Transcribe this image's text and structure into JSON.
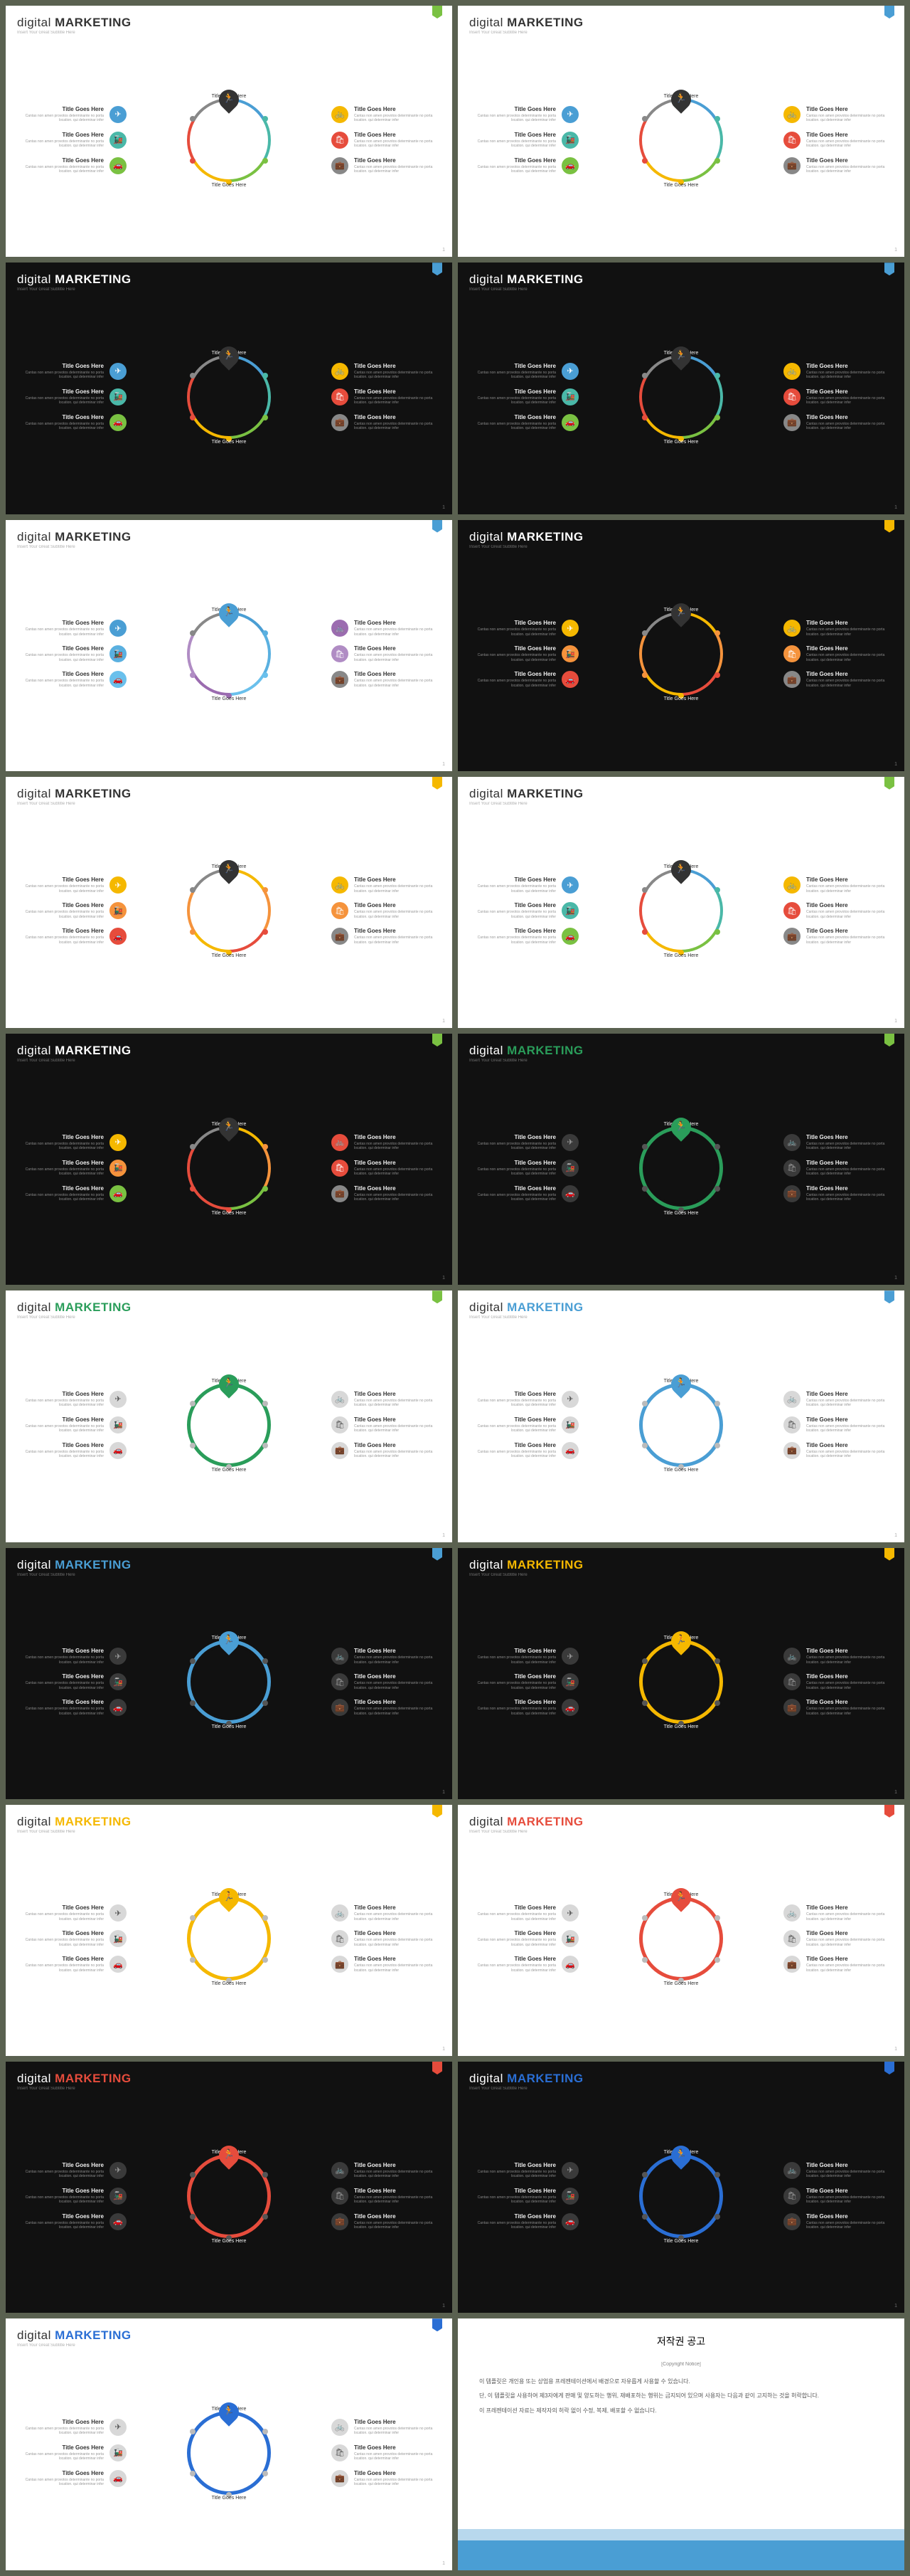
{
  "title_a": "digital",
  "title_b": "MARKETING",
  "subtitle": "Insert Your Great Subtitle Here",
  "item_title": "Title Goes Here",
  "item_body": "Cantas non amen provotos determinante no porta location. qui determinar infer",
  "globe_top": "Title Goes Here",
  "globe_bottom": "Title Goes Here",
  "copyright_title": "저작권 공고",
  "copyright_sub": "[Copyright Notice]",
  "cp1": "이 템플릿은 개인용 또는 상업용 프레젠테이션에서 배경으로 자유롭게 사용할 수 있습니다.",
  "cp2": "단, 이 템플릿을 사용하여 제3자에게 판매 및 양도하는 행위, 재배포하는 행위는 금지되어 있으며 사용자는 다음과 같이 고지하는 것을 허락합니다.",
  "cp3": "이 프레젠테이션 자료는 제작자의 허락 없이 수정, 복제, 배포할 수 없습니다.",
  "colors": {
    "blue": "#4a9ed4",
    "green": "#7ac142",
    "yellow": "#f5b800",
    "orange": "#f5933c",
    "red": "#e64c3c",
    "gray": "#888888",
    "purple": "#9b6cb0",
    "teal": "#4ab8a8",
    "dgreen": "#2a9d5a",
    "dblue": "#2a6ed4",
    "brown": "#a67c52"
  },
  "icons": [
    "✈",
    "🚂",
    "🚗",
    "🚲",
    "🛍",
    "💼"
  ],
  "slides": [
    {
      "bg": "light",
      "tag": "#7ac142",
      "num": "1",
      "mode": "multi",
      "pin": "#333"
    },
    {
      "bg": "light",
      "tag": "#4a9ed4",
      "num": "1",
      "mode": "multi",
      "pin": "#333"
    },
    {
      "bg": "dark",
      "tag": "#4a9ed4",
      "num": "1",
      "mode": "multi",
      "pin": "#333"
    },
    {
      "bg": "dark",
      "tag": "#4a9ed4",
      "num": "1",
      "mode": "multi",
      "pin": "#333"
    },
    {
      "bg": "light",
      "tag": "#4a9ed4",
      "num": "1",
      "mode": "blues",
      "pin": "#4a9ed4",
      "accent": "#4a9ed4"
    },
    {
      "bg": "dark",
      "tag": "#f5b800",
      "num": "1",
      "mode": "warm",
      "pin": "#333"
    },
    {
      "bg": "light",
      "tag": "#f5b800",
      "num": "1",
      "mode": "warm",
      "pin": "#333"
    },
    {
      "bg": "light",
      "tag": "#7ac142",
      "num": "1",
      "mode": "multi",
      "pin": "#333"
    },
    {
      "bg": "dark",
      "tag": "#7ac142",
      "num": "1",
      "mode": "warm2",
      "pin": "#333"
    },
    {
      "bg": "dark",
      "tag": "#7ac142",
      "num": "1",
      "mode": "mono",
      "pin": "#2a9d5a",
      "accent": "#2a9d5a",
      "hl": "#2a9d5a"
    },
    {
      "bg": "light",
      "tag": "#7ac142",
      "num": "1",
      "mode": "mono",
      "pin": "#2a9d5a",
      "accent": "#2a9d5a",
      "hl": "#2a9d5a"
    },
    {
      "bg": "light",
      "tag": "#4a9ed4",
      "num": "1",
      "mode": "mono",
      "pin": "#4a9ed4",
      "accent": "#4a9ed4",
      "hl": "#4a9ed4"
    },
    {
      "bg": "dark",
      "tag": "#4a9ed4",
      "num": "1",
      "mode": "mono",
      "pin": "#4a9ed4",
      "accent": "#4a9ed4",
      "hl": "#4a9ed4"
    },
    {
      "bg": "dark",
      "tag": "#f5b800",
      "num": "1",
      "mode": "mono",
      "pin": "#f5b800",
      "accent": "#f5b800",
      "hl": "#f5b800"
    },
    {
      "bg": "light",
      "tag": "#f5b800",
      "num": "1",
      "mode": "mono",
      "pin": "#f5b800",
      "accent": "#f5b800",
      "hl": "#f5b800"
    },
    {
      "bg": "light",
      "tag": "#e64c3c",
      "num": "1",
      "mode": "mono",
      "pin": "#e64c3c",
      "accent": "#e64c3c",
      "hl": "#e64c3c"
    },
    {
      "bg": "dark",
      "tag": "#e64c3c",
      "num": "1",
      "mode": "mono",
      "pin": "#e64c3c",
      "accent": "#e64c3c",
      "hl": "#e64c3c"
    },
    {
      "bg": "dark",
      "tag": "#2a6ed4",
      "num": "1",
      "mode": "mono",
      "pin": "#2a6ed4",
      "accent": "#2a6ed4",
      "hl": "#2a6ed4"
    },
    {
      "bg": "light",
      "tag": "#2a6ed4",
      "num": "1",
      "mode": "mono",
      "pin": "#2a6ed4",
      "accent": "#2a6ed4",
      "hl": "#2a6ed4"
    }
  ],
  "palettes": {
    "multi": [
      "#4a9ed4",
      "#4ab8a8",
      "#7ac142",
      "#f5b800",
      "#e64c3c",
      "#888888"
    ],
    "blues": [
      "#4a9ed4",
      "#5ab0e0",
      "#6ac0ec",
      "#9b6cb0",
      "#b08cc4",
      "#888888"
    ],
    "warm": [
      "#f5b800",
      "#f5933c",
      "#e64c3c",
      "#f5b800",
      "#f5933c",
      "#888888"
    ],
    "warm2": [
      "#f5b800",
      "#f5933c",
      "#7ac142",
      "#e64c3c",
      "#e64c3c",
      "#888888"
    ]
  }
}
